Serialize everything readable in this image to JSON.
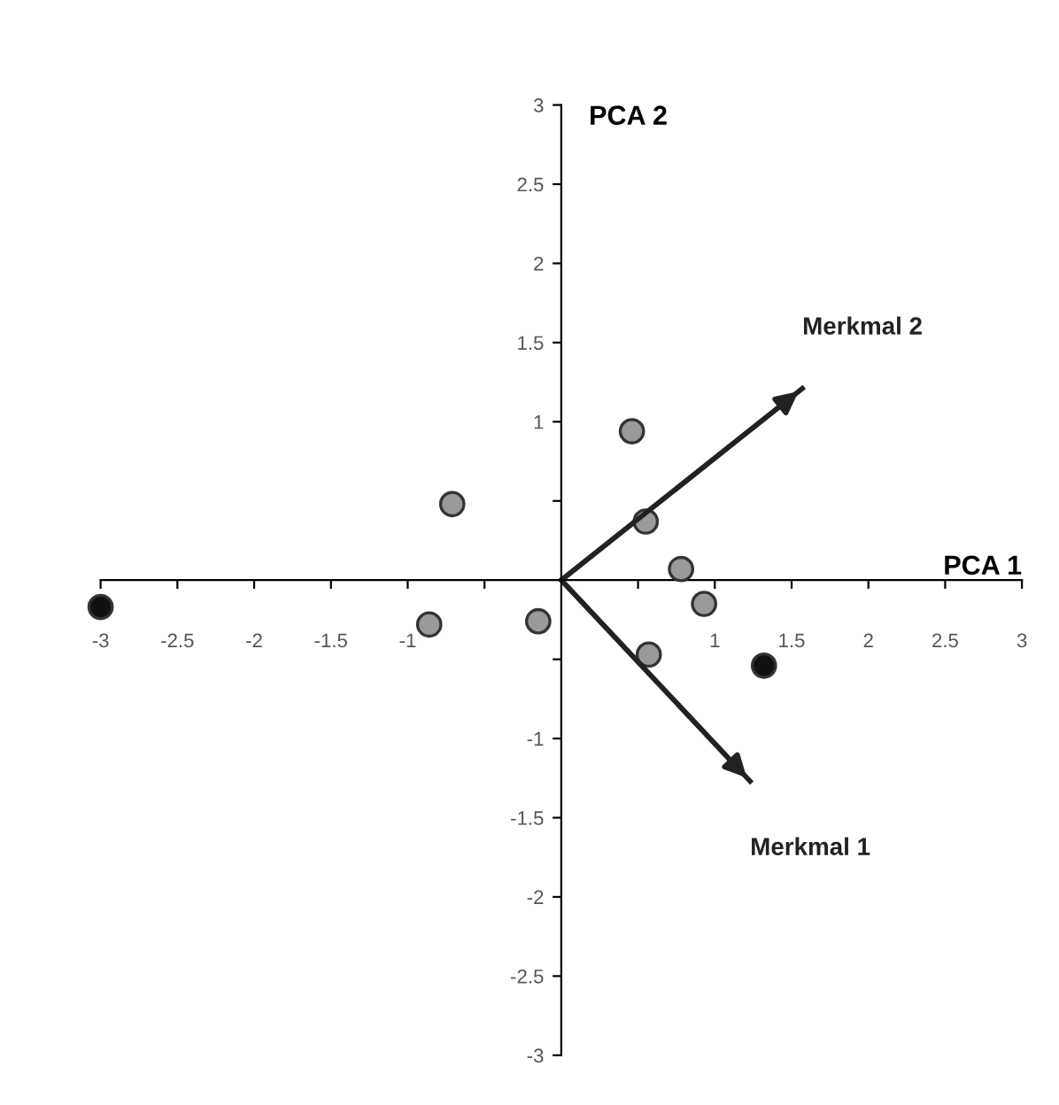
{
  "chart_data": {
    "type": "scatter",
    "xlabel": "PCA 1",
    "ylabel": "PCA 2",
    "xlim": [
      -3,
      3
    ],
    "ylim": [
      -3,
      3
    ],
    "xticks": [
      -3,
      -2.5,
      -2,
      -1.5,
      -1,
      {
        "value": -0.5,
        "label": null
      },
      {
        "value": 0.5,
        "label": null
      },
      1,
      1.5,
      2,
      2.5,
      3
    ],
    "yticks": [
      -3,
      -2.5,
      -2,
      -1.5,
      -1,
      {
        "value": -0.5,
        "label": null
      },
      {
        "value": 0.5,
        "label": null
      },
      1,
      1.5,
      2,
      2.5,
      3
    ],
    "grid": false,
    "legend": false,
    "marker": "circle",
    "series": [
      {
        "color": "#111111",
        "x": [
          -3,
          1.32
        ],
        "values": [
          -0.17,
          -0.54
        ]
      },
      {
        "color": "#9a9a9a",
        "x": [
          -0.71,
          -0.86,
          -0.15,
          0.46,
          0.55,
          0.78,
          0.93,
          0.57
        ],
        "values": [
          0.48,
          -0.28,
          -0.26,
          0.94,
          0.37,
          0.07,
          -0.15,
          -0.47
        ]
      },
      {
        "type": "line",
        "marker": "none",
        "name": "Merkmal 2",
        "color": "#222222",
        "x": [
          0,
          1.57
        ],
        "values": [
          0,
          1.21
        ]
      },
      {
        "type": "line",
        "marker": "none",
        "name": "Merkmal 1",
        "color": "#222222",
        "x": [
          0,
          1.23
        ],
        "values": [
          0,
          -1.27
        ]
      }
    ]
  }
}
